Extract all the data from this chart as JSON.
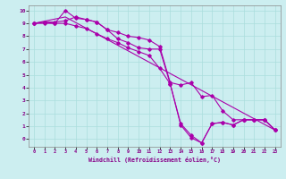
{
  "xlabel": "Windchill (Refroidissement éolien,°C)",
  "background_color": "#cceef0",
  "grid_color": "#aadddd",
  "line_color": "#aa00aa",
  "xlim": [
    -0.5,
    23.5
  ],
  "ylim": [
    -0.6,
    10.4
  ],
  "xticks": [
    0,
    1,
    2,
    3,
    4,
    5,
    6,
    7,
    8,
    9,
    10,
    11,
    12,
    13,
    14,
    15,
    16,
    17,
    18,
    19,
    20,
    21,
    22,
    23
  ],
  "yticks": [
    0,
    1,
    2,
    3,
    4,
    5,
    6,
    7,
    8,
    9,
    10
  ],
  "yticklabels": [
    "0",
    "1",
    "2",
    "3",
    "4",
    "5",
    "6",
    "7",
    "8",
    "9",
    "10"
  ],
  "line1_x": [
    0,
    1,
    2,
    3,
    4,
    5,
    6,
    7,
    8,
    9,
    10,
    11,
    12,
    13,
    14,
    15,
    16,
    17,
    18,
    19,
    20,
    21,
    22,
    23
  ],
  "line1_y": [
    9.0,
    9.1,
    9.1,
    9.2,
    9.5,
    9.3,
    9.1,
    8.5,
    8.3,
    8.0,
    7.9,
    7.7,
    7.2,
    4.4,
    4.2,
    4.4,
    3.3,
    3.4,
    2.2,
    1.5,
    1.5,
    1.5,
    1.5,
    0.7
  ],
  "line2_x": [
    0,
    1,
    2,
    3,
    4,
    5,
    6,
    7,
    8,
    9,
    10,
    11,
    12,
    13,
    14,
    15,
    16,
    17,
    18,
    19,
    20,
    21,
    22,
    23
  ],
  "line2_y": [
    9.0,
    9.1,
    9.0,
    10.0,
    9.4,
    9.3,
    9.1,
    8.5,
    7.8,
    7.5,
    7.1,
    7.0,
    7.0,
    4.3,
    1.2,
    0.3,
    -0.3,
    1.2,
    1.3,
    1.1,
    1.5,
    1.5,
    1.5,
    0.7
  ],
  "line3_x": [
    0,
    1,
    2,
    3,
    4,
    5,
    6,
    7,
    8,
    9,
    10,
    11,
    12,
    13,
    14,
    15,
    16,
    17,
    18,
    19,
    20,
    21,
    22,
    23
  ],
  "line3_y": [
    9.0,
    9.0,
    9.0,
    9.0,
    8.8,
    8.6,
    8.2,
    7.8,
    7.5,
    7.1,
    6.8,
    6.5,
    5.5,
    4.3,
    1.1,
    0.1,
    -0.3,
    1.2,
    1.3,
    1.1,
    1.5,
    1.5,
    1.5,
    0.7
  ],
  "line4_x": [
    0,
    3,
    23
  ],
  "line4_y": [
    9.0,
    9.5,
    0.7
  ]
}
